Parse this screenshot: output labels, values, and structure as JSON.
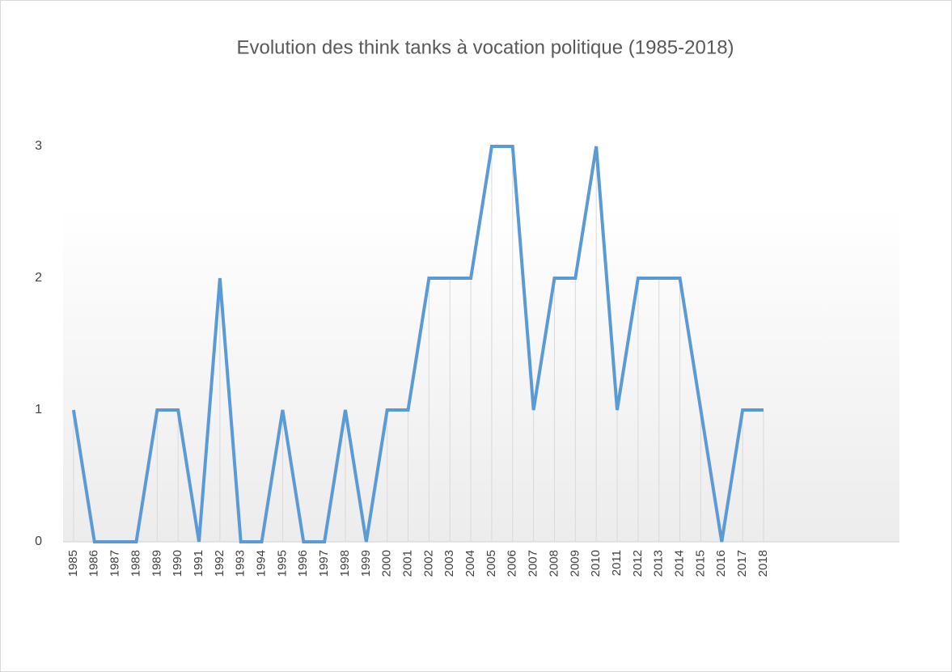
{
  "chart_data": {
    "type": "line",
    "title": "Evolution des think tanks à vocation politique (1985-2018)",
    "categories": [
      "1985",
      "1986",
      "1987",
      "1988",
      "1989",
      "1990",
      "1991",
      "1992",
      "1993",
      "1994",
      "1995",
      "1996",
      "1997",
      "1998",
      "1999",
      "2000",
      "2001",
      "2002",
      "2003",
      "2004",
      "2005",
      "2006",
      "2007",
      "2008",
      "2009",
      "2010",
      "2011",
      "2012",
      "2013",
      "2014",
      "2015",
      "2016",
      "2017",
      "2018",
      null,
      null,
      null,
      null,
      null,
      null
    ],
    "values": [
      1,
      0,
      0,
      0,
      1,
      1,
      0,
      2,
      0,
      0,
      1,
      0,
      0,
      1,
      0,
      1,
      1,
      2,
      2,
      2,
      3,
      3,
      1,
      2,
      2,
      3,
      1,
      2,
      2,
      2,
      1,
      0,
      1,
      1,
      null,
      null,
      null,
      null,
      null,
      null
    ],
    "color": "#5b9bd5",
    "ylim": [
      0,
      3
    ],
    "yticks": [
      0,
      1,
      2,
      3
    ],
    "drop_lines": true
  }
}
